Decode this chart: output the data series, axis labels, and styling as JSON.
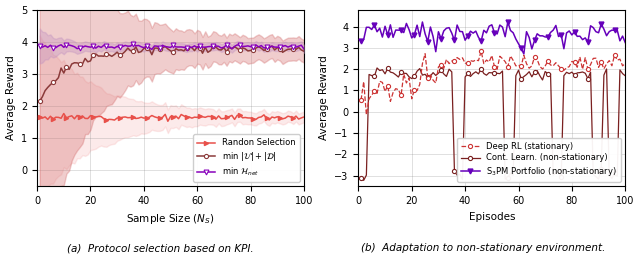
{
  "fig_width": 6.4,
  "fig_height": 2.54,
  "dpi": 100,
  "left_title": "(a)  Protocol selection based on KPI.",
  "right_title": "(b)  Adaptation to non-stationary environment.",
  "left_xlabel": "Sample Size $(N_S)$",
  "left_ylabel": "Average Reward",
  "right_xlabel": "Episodes",
  "right_ylabel": "Average Reward",
  "left_xlim": [
    0,
    100
  ],
  "left_ylim": [
    -0.5,
    5.0
  ],
  "right_xlim": [
    0,
    100
  ],
  "right_ylim": [
    -3.5,
    4.8
  ],
  "left_yticks": [
    0,
    1,
    2,
    3,
    4,
    5
  ],
  "right_yticks": [
    -3,
    -2,
    -1,
    0,
    1,
    2,
    3,
    4
  ],
  "colors": {
    "random": "#e8504a",
    "min_ud": "#8b3a3a",
    "min_hnet": "#8800bb",
    "deep_rl": "#cc3333",
    "cont_learn": "#7a2020",
    "s3pm": "#6600bb"
  },
  "fill_random_color": "#f4a0a0",
  "fill_ud_color": "#d47070",
  "fill_hnet_color": "#c090c0"
}
